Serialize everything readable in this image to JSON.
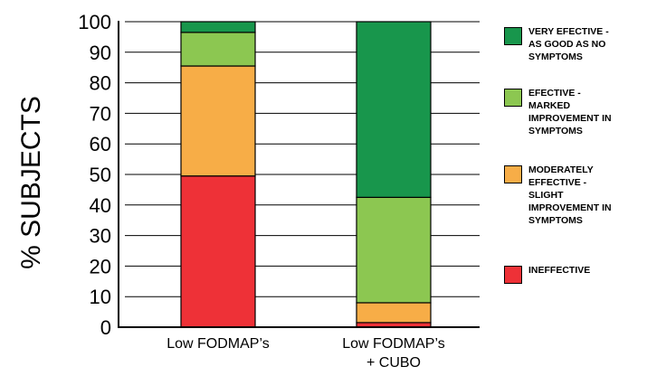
{
  "chart_data": {
    "type": "bar",
    "stacked": true,
    "categories": [
      "Low FODMAP’s",
      "Low FODMAP’s\n+ CUBO"
    ],
    "ylabel": "% SUBJECTS",
    "ylim": [
      0,
      100
    ],
    "yticks": [
      "0",
      "10",
      "20",
      "30",
      "40",
      "50",
      "60",
      "70",
      "80",
      "90",
      "100"
    ],
    "grid": true,
    "legend_position": "right",
    "series": [
      {
        "name": "INEFFECTIVE",
        "color": "#ee3137",
        "values": [
          49.5,
          1.5
        ]
      },
      {
        "name": "MODERATELY EFFECTIVE - SLIGHT IMPROVEMENT IN SYMPTOMS",
        "color": "#f7ad47",
        "values": [
          36,
          6.5
        ]
      },
      {
        "name": "EFECTIVE - MARKED IMPROVEMENT IN SYMPTOMS",
        "color": "#8cc751",
        "values": [
          11,
          34.5
        ]
      },
      {
        "name": "VERY EFECTIVE - AS GOOD AS NO SYMPTOMS",
        "color": "#18964c",
        "values": [
          3.5,
          57.5
        ]
      }
    ]
  },
  "legend": {
    "items": [
      {
        "label": "VERY EFECTIVE -\nAS GOOD AS NO\nSYMPTOMS",
        "color": "#18964c"
      },
      {
        "label": "EFECTIVE -\nMARKED\nIMPROVEMENT IN\nSYMPTOMS",
        "color": "#8cc751"
      },
      {
        "label": "MODERATELY\nEFFECTIVE -\nSLIGHT\nIMPROVEMENT IN\nSYMPTOMS",
        "color": "#f7ad47"
      },
      {
        "label": "INEFFECTIVE",
        "color": "#ee3137"
      }
    ]
  }
}
